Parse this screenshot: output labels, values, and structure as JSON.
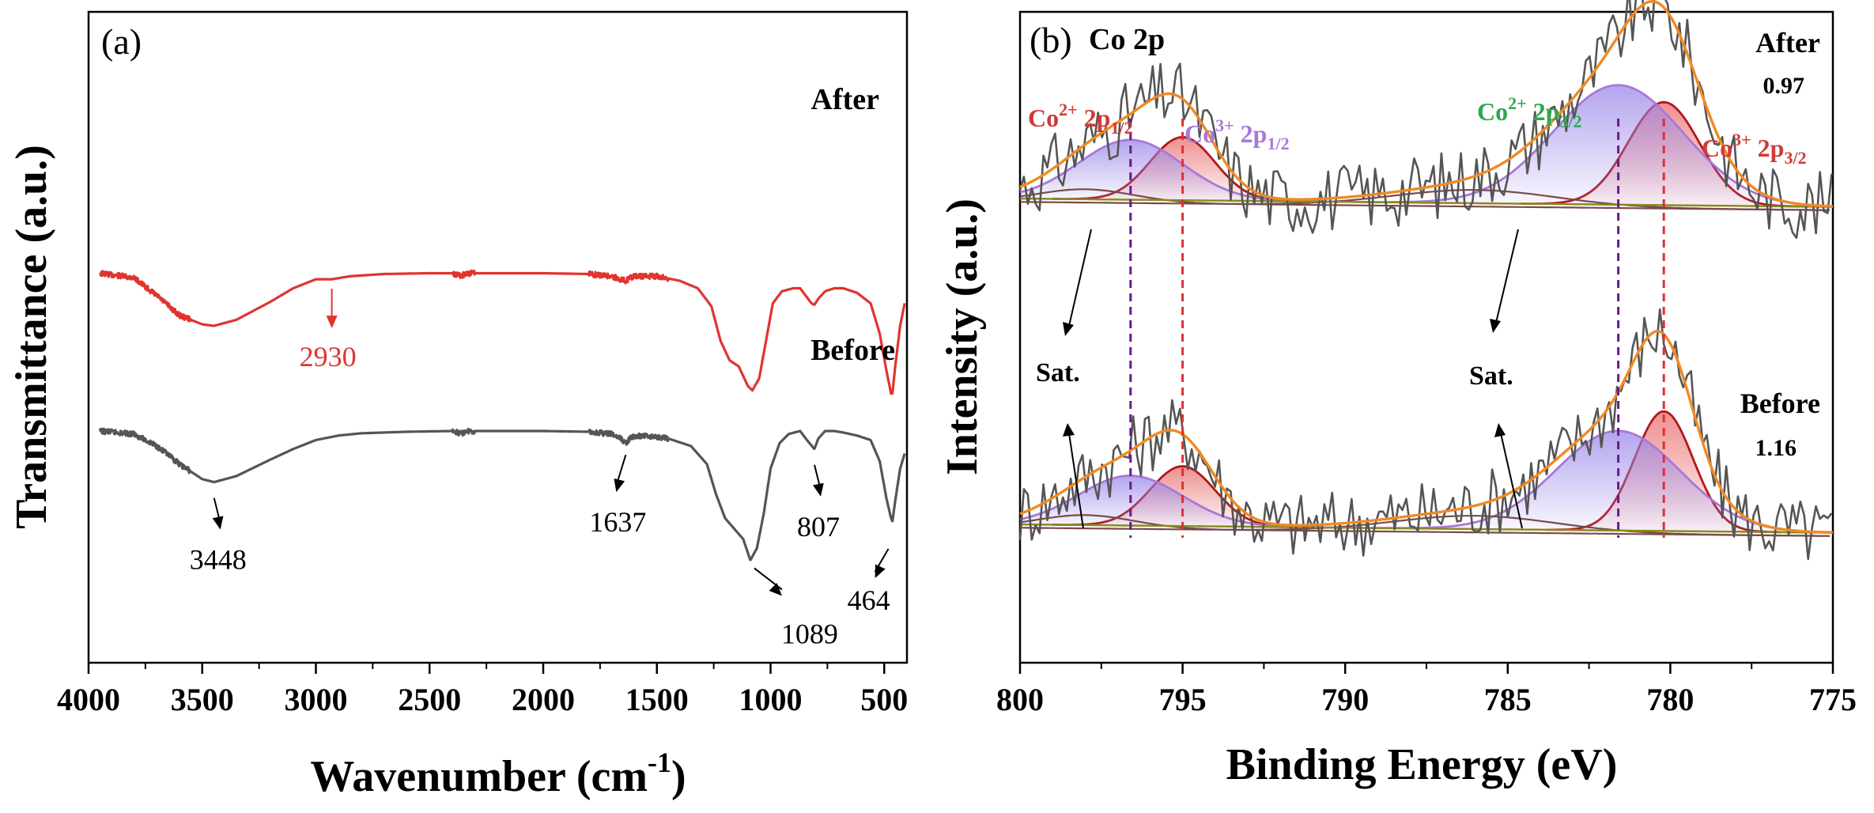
{
  "chart_data": [
    {
      "type": "line",
      "panel_label": "(a)",
      "xlabel": "Wavenumber (cm",
      "xlabel_sup": "-1",
      "xlabel_end": ")",
      "ylabel": "Transmittance (a.u.)",
      "xlim": [
        4000,
        400
      ],
      "x_ticks": [
        "4000",
        "3500",
        "3000",
        "2500",
        "2000",
        "1500",
        "1000",
        "500"
      ],
      "x_tick_values": [
        4000,
        3500,
        3000,
        2500,
        2000,
        1500,
        1000,
        500
      ],
      "series": [
        {
          "name": "After",
          "color": "#e0342f",
          "offset": 1.05,
          "points": [
            [
              3950,
              1.0
            ],
            [
              3800,
              0.97
            ],
            [
              3700,
              0.85
            ],
            [
              3600,
              0.72
            ],
            [
              3500,
              0.66
            ],
            [
              3448,
              0.65
            ],
            [
              3350,
              0.69
            ],
            [
              3200,
              0.81
            ],
            [
              3100,
              0.9
            ],
            [
              3000,
              0.96
            ],
            [
              2930,
              0.96
            ],
            [
              2850,
              0.98
            ],
            [
              2700,
              0.995
            ],
            [
              2500,
              1.0
            ],
            [
              2400,
              1.0
            ],
            [
              2360,
              0.98
            ],
            [
              2340,
              1.0
            ],
            [
              2000,
              1.0
            ],
            [
              1800,
              0.995
            ],
            [
              1700,
              0.98
            ],
            [
              1640,
              0.95
            ],
            [
              1600,
              0.98
            ],
            [
              1500,
              0.98
            ],
            [
              1400,
              0.95
            ],
            [
              1320,
              0.9
            ],
            [
              1260,
              0.78
            ],
            [
              1220,
              0.55
            ],
            [
              1180,
              0.42
            ],
            [
              1140,
              0.38
            ],
            [
              1100,
              0.25
            ],
            [
              1080,
              0.22
            ],
            [
              1050,
              0.3
            ],
            [
              1020,
              0.55
            ],
            [
              990,
              0.8
            ],
            [
              950,
              0.88
            ],
            [
              900,
              0.9
            ],
            [
              870,
              0.9
            ],
            [
              840,
              0.84
            ],
            [
              820,
              0.8
            ],
            [
              807,
              0.79
            ],
            [
              790,
              0.83
            ],
            [
              760,
              0.88
            ],
            [
              720,
              0.9
            ],
            [
              680,
              0.9
            ],
            [
              620,
              0.87
            ],
            [
              560,
              0.8
            ],
            [
              520,
              0.6
            ],
            [
              490,
              0.35
            ],
            [
              470,
              0.2
            ],
            [
              464,
              0.2
            ],
            [
              450,
              0.4
            ],
            [
              430,
              0.65
            ],
            [
              410,
              0.8
            ]
          ],
          "annotations": [
            {
              "label": "2930",
              "x": 2930
            }
          ]
        },
        {
          "name": "Before",
          "color": "#555555",
          "offset": 0.0,
          "points": [
            [
              3950,
              1.0
            ],
            [
              3800,
              0.98
            ],
            [
              3700,
              0.9
            ],
            [
              3600,
              0.78
            ],
            [
              3500,
              0.68
            ],
            [
              3448,
              0.66
            ],
            [
              3350,
              0.7
            ],
            [
              3200,
              0.81
            ],
            [
              3100,
              0.88
            ],
            [
              3000,
              0.94
            ],
            [
              2900,
              0.97
            ],
            [
              2800,
              0.985
            ],
            [
              2600,
              0.995
            ],
            [
              2400,
              1.0
            ],
            [
              2360,
              0.98
            ],
            [
              2340,
              1.0
            ],
            [
              2000,
              1.0
            ],
            [
              1800,
              0.995
            ],
            [
              1700,
              0.98
            ],
            [
              1660,
              0.95
            ],
            [
              1637,
              0.92
            ],
            [
              1610,
              0.96
            ],
            [
              1550,
              0.97
            ],
            [
              1450,
              0.95
            ],
            [
              1350,
              0.9
            ],
            [
              1280,
              0.78
            ],
            [
              1240,
              0.58
            ],
            [
              1200,
              0.42
            ],
            [
              1160,
              0.35
            ],
            [
              1120,
              0.28
            ],
            [
              1089,
              0.14
            ],
            [
              1060,
              0.22
            ],
            [
              1030,
              0.45
            ],
            [
              1000,
              0.75
            ],
            [
              960,
              0.92
            ],
            [
              920,
              0.98
            ],
            [
              870,
              1.0
            ],
            [
              840,
              0.94
            ],
            [
              807,
              0.88
            ],
            [
              790,
              0.95
            ],
            [
              760,
              1.0
            ],
            [
              720,
              1.0
            ],
            [
              680,
              0.99
            ],
            [
              620,
              0.97
            ],
            [
              560,
              0.94
            ],
            [
              520,
              0.8
            ],
            [
              490,
              0.55
            ],
            [
              470,
              0.42
            ],
            [
              464,
              0.4
            ],
            [
              450,
              0.55
            ],
            [
              430,
              0.75
            ],
            [
              410,
              0.85
            ]
          ],
          "annotations": [
            {
              "label": "3448",
              "x": 3448
            },
            {
              "label": "1637",
              "x": 1637
            },
            {
              "label": "1089",
              "x": 1089
            },
            {
              "label": "807",
              "x": 807
            },
            {
              "label": "464",
              "x": 464
            }
          ]
        }
      ]
    },
    {
      "type": "line",
      "panel_label": "(b)",
      "panel_title": "Co 2p",
      "xlabel": "Binding Energy (eV)",
      "ylabel": "Intensity (a.u.)",
      "xlim": [
        800,
        775
      ],
      "x_ticks": [
        "800",
        "795",
        "790",
        "785",
        "780",
        "775"
      ],
      "x_tick_values": [
        800,
        795,
        790,
        785,
        780,
        775
      ],
      "colors": {
        "raw": "#555555",
        "envelope": "#f08a24",
        "background": "#8a8a1e",
        "co2": "#a878d8",
        "co3": "#b01818",
        "sat": "#7a4a4a",
        "co2_line": "#6a1a8a",
        "co3_line": "#e03030"
      },
      "series": [
        {
          "name": "After",
          "ratio": "0.97",
          "offset": 1.0,
          "peaks": [
            {
              "component": "Co3+ 2p3/2",
              "center": 780.2,
              "height": 0.62,
              "width": 1.1
            },
            {
              "component": "Co2+ 2p3/2",
              "center": 781.6,
              "height": 0.72,
              "width": 2.0
            },
            {
              "component": "Co3+ 2p1/2",
              "center": 795.0,
              "height": 0.38,
              "width": 1.0
            },
            {
              "component": "Co2+ 2p1/2",
              "center": 796.6,
              "height": 0.36,
              "width": 1.6
            },
            {
              "component": "Sat.",
              "center": 786.0,
              "height": 0.1,
              "width": 2.5
            },
            {
              "component": "Sat.",
              "center": 798.0,
              "height": 0.08,
              "width": 1.5
            }
          ]
        },
        {
          "name": "Before",
          "ratio": "1.16",
          "offset": 0.0,
          "peaks": [
            {
              "component": "Co3+ 2p3/2",
              "center": 780.2,
              "height": 0.72,
              "width": 0.9
            },
            {
              "component": "Co2+ 2p3/2",
              "center": 781.6,
              "height": 0.6,
              "width": 1.9
            },
            {
              "component": "Co3+ 2p1/2",
              "center": 795.0,
              "height": 0.36,
              "width": 1.0
            },
            {
              "component": "Co2+ 2p1/2",
              "center": 796.6,
              "height": 0.3,
              "width": 1.6
            },
            {
              "component": "Sat.",
              "center": 786.0,
              "height": 0.1,
              "width": 2.5
            },
            {
              "component": "Sat.",
              "center": 798.0,
              "height": 0.08,
              "width": 1.5
            }
          ]
        }
      ],
      "vlines": [
        {
          "x": 796.6,
          "color": "#6a1a8a"
        },
        {
          "x": 795.0,
          "color": "#e03030"
        },
        {
          "x": 781.6,
          "color": "#6a1a8a"
        },
        {
          "x": 780.2,
          "color": "#e03030"
        }
      ],
      "labels": {
        "co2_2p12": {
          "main": "Co",
          "sup": "2+",
          "mid": " 2p",
          "sub": "1/2"
        },
        "co3_2p12": {
          "main": "Co",
          "sup": "3+",
          "mid": " 2p",
          "sub": "1/2"
        },
        "co2_2p32": {
          "main": "Co",
          "sup": "2+",
          "mid": " 2p",
          "sub": "3/2"
        },
        "co3_2p32": {
          "main": "Co",
          "sup": "3+",
          "mid": " 2p",
          "sub": "3/2"
        },
        "sat": "Sat."
      }
    }
  ]
}
